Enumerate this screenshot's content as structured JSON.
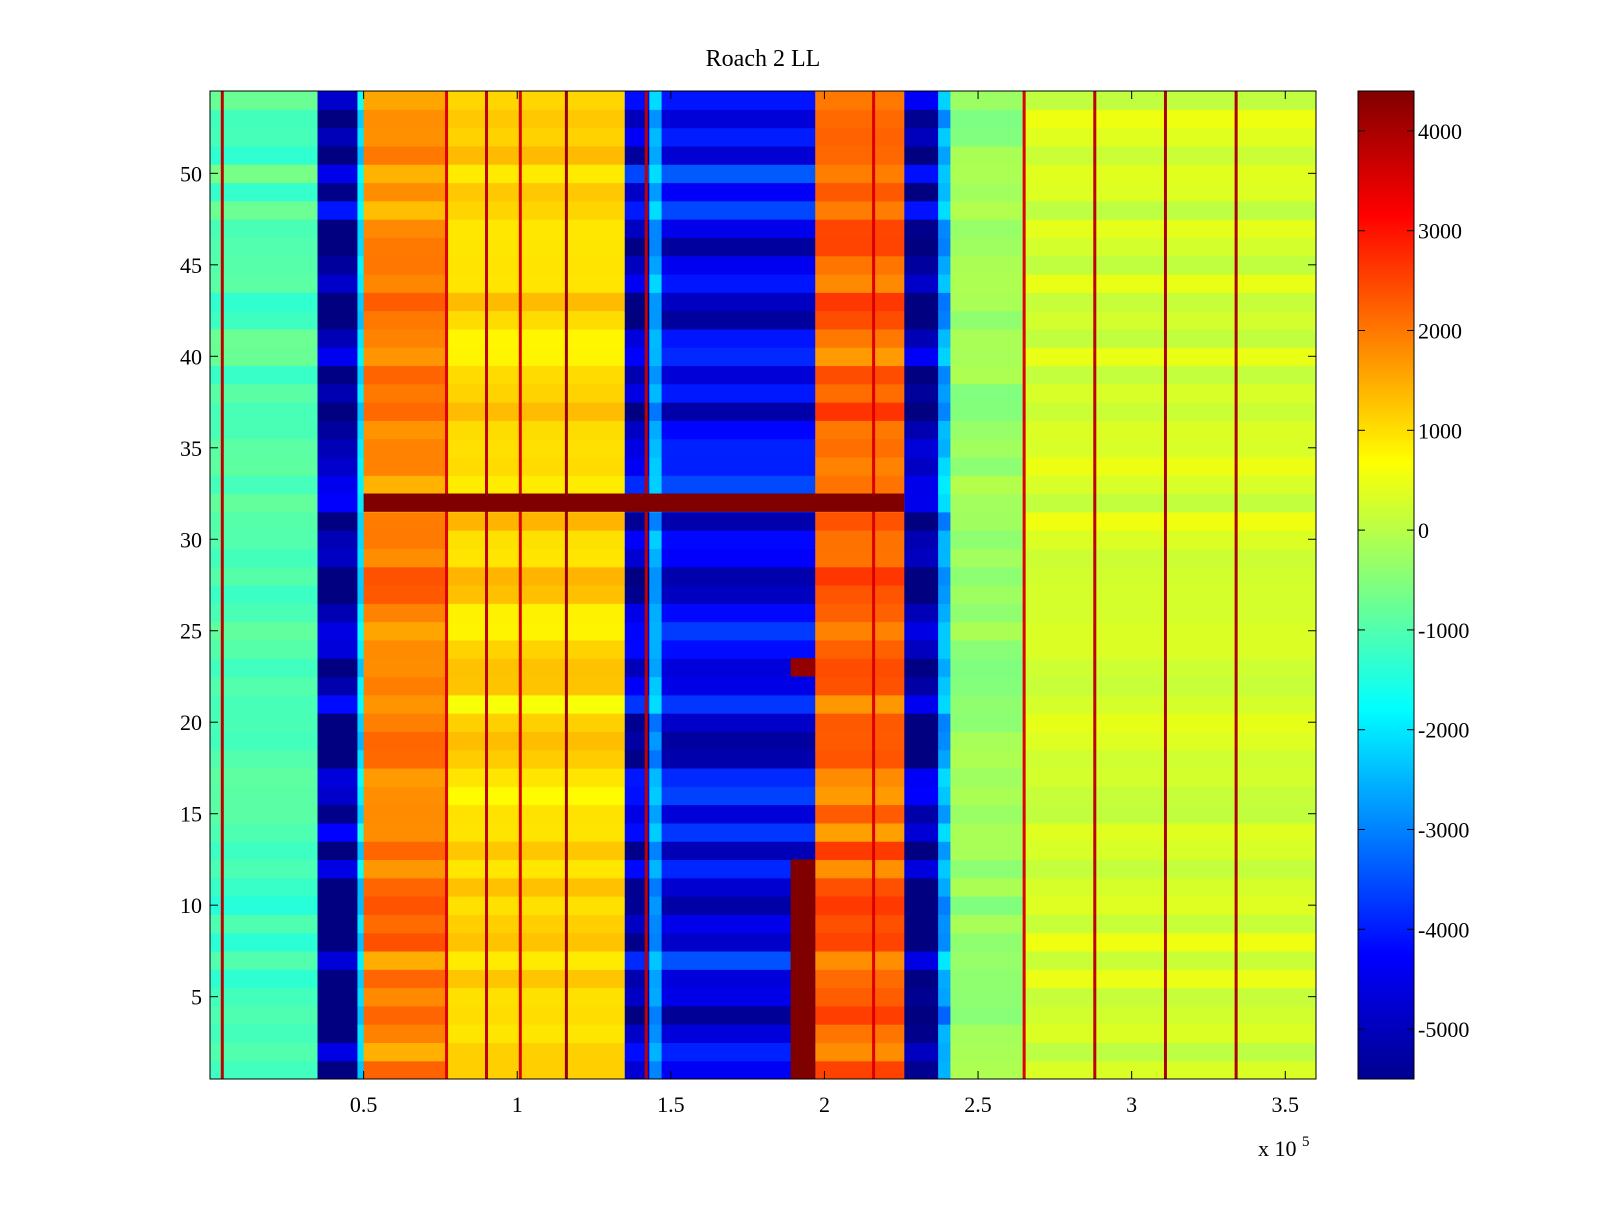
{
  "chart_data": {
    "type": "heatmap",
    "title": "Roach 2 LL",
    "xlabel": "",
    "ylabel": "",
    "x_multiplier_label": "x 10",
    "x_multiplier_exponent": "5",
    "xlim": [
      0,
      360000
    ],
    "ylim": [
      0.5,
      54.5
    ],
    "x_ticks": [
      {
        "value": 50000,
        "label": "0.5"
      },
      {
        "value": 100000,
        "label": "1"
      },
      {
        "value": 150000,
        "label": "1.5"
      },
      {
        "value": 200000,
        "label": "2"
      },
      {
        "value": 250000,
        "label": "2.5"
      },
      {
        "value": 300000,
        "label": "3"
      },
      {
        "value": 350000,
        "label": "3.5"
      }
    ],
    "y_ticks": [
      {
        "value": 5,
        "label": "5"
      },
      {
        "value": 10,
        "label": "10"
      },
      {
        "value": 15,
        "label": "15"
      },
      {
        "value": 20,
        "label": "20"
      },
      {
        "value": 25,
        "label": "25"
      },
      {
        "value": 30,
        "label": "30"
      },
      {
        "value": 35,
        "label": "35"
      },
      {
        "value": 40,
        "label": "40"
      },
      {
        "value": 45,
        "label": "45"
      },
      {
        "value": 50,
        "label": "50"
      }
    ],
    "colorbar": {
      "colormap": "jet",
      "range": [
        -5500,
        4400
      ],
      "ticks": [
        {
          "value": 4000,
          "label": "4000"
        },
        {
          "value": 3000,
          "label": "3000"
        },
        {
          "value": 2000,
          "label": "2000"
        },
        {
          "value": 1000,
          "label": "1000"
        },
        {
          "value": 0,
          "label": "0"
        },
        {
          "value": -1000,
          "label": "-1000"
        },
        {
          "value": -2000,
          "label": "-2000"
        },
        {
          "value": -3000,
          "label": "-3000"
        },
        {
          "value": -4000,
          "label": "-4000"
        },
        {
          "value": -5000,
          "label": "-5000"
        }
      ]
    },
    "rows": [
      1,
      54
    ],
    "column_bands": [
      {
        "x0": 0,
        "x1": 35000,
        "value": -1000
      },
      {
        "x0": 35000,
        "x1": 48000,
        "value": -5000
      },
      {
        "x0": 48000,
        "x1": 50000,
        "value": -2000
      },
      {
        "x0": 50000,
        "x1": 77000,
        "value": 1800
      },
      {
        "x0": 77000,
        "x1": 135000,
        "value": 1000
      },
      {
        "x0": 135000,
        "x1": 143000,
        "value": -4500
      },
      {
        "x0": 143000,
        "x1": 147000,
        "value": -2500
      },
      {
        "x0": 147000,
        "x1": 197000,
        "value": -4200
      },
      {
        "x0": 197000,
        "x1": 226000,
        "value": 2100
      },
      {
        "x0": 226000,
        "x1": 237000,
        "value": -5000
      },
      {
        "x0": 237000,
        "x1": 241000,
        "value": -2500
      },
      {
        "x0": 241000,
        "x1": 265000,
        "value": -300
      },
      {
        "x0": 265000,
        "x1": 360000,
        "value": 300
      }
    ],
    "thin_lines": [
      {
        "x": 4000,
        "value": 3800
      },
      {
        "x": 77000,
        "value": 3500
      },
      {
        "x": 90000,
        "value": 3800
      },
      {
        "x": 101000,
        "value": 3500
      },
      {
        "x": 116000,
        "value": 4200
      },
      {
        "x": 142000,
        "value": 3800
      },
      {
        "x": 216000,
        "value": 3500
      },
      {
        "x": 265000,
        "value": 3500
      },
      {
        "x": 288000,
        "value": 3800
      },
      {
        "x": 311000,
        "value": 4000
      },
      {
        "x": 334000,
        "value": 4000
      }
    ],
    "highlights": [
      {
        "x0": 50000,
        "x1": 226000,
        "row0": 32,
        "row1": 32,
        "value": 4400
      },
      {
        "x0": 189000,
        "x1": 197000,
        "row0": 1,
        "row1": 12,
        "value": 4400
      },
      {
        "x0": 189000,
        "x1": 197000,
        "row0": 23,
        "row1": 23,
        "value": 4200
      }
    ]
  }
}
